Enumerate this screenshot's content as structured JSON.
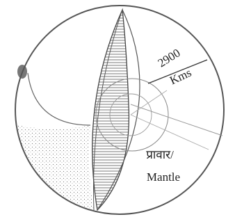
{
  "labels": {
    "distance_value": "2900",
    "distance_unit": "Kms",
    "layer_hindi": "प्रावार/",
    "layer_english": "Mantle"
  }
}
